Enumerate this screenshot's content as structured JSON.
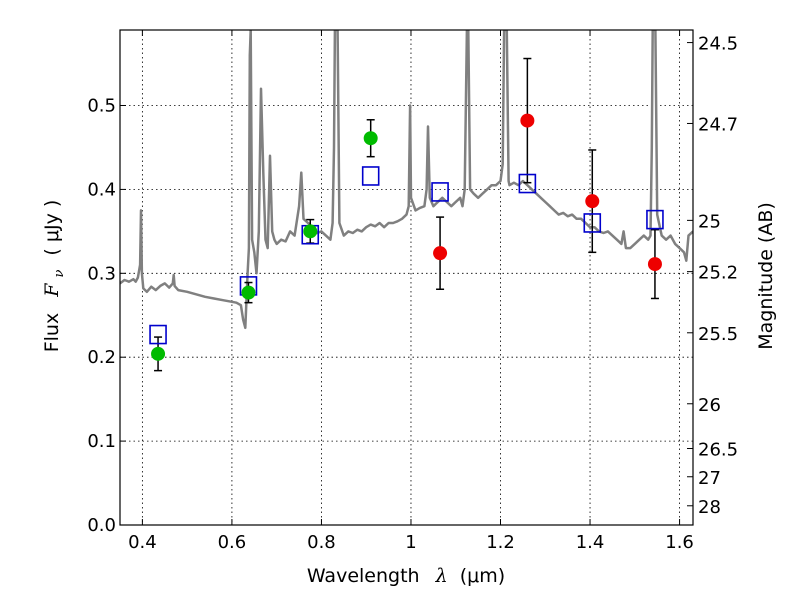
{
  "chart_data": {
    "type": "scatter",
    "xlabel": {
      "prefix": "Wavelength",
      "symbol": "λ",
      "unit": "(μm)"
    },
    "ylabel": {
      "prefix": "Flux",
      "symbol": "F",
      "subscript": "ν",
      "unit": "( μJy )"
    },
    "y2label": "Magnitude (AB)",
    "xlim": [
      0.35,
      1.63
    ],
    "ylim": [
      0.0,
      0.59
    ],
    "grid": true,
    "x_ticks": [
      0.4,
      0.6,
      0.8,
      1.0,
      1.2,
      1.4,
      1.6
    ],
    "x_tick_labels": [
      "0.4",
      "0.6",
      "0.8",
      "1",
      "1.2",
      "1.4",
      "1.6"
    ],
    "y_ticks": [
      0.0,
      0.1,
      0.2,
      0.3,
      0.4,
      0.5
    ],
    "y_tick_labels": [
      "0.0",
      "0.1",
      "0.2",
      "0.3",
      "0.4",
      "0.5"
    ],
    "magnitude_ticks": [
      {
        "label": "24.5",
        "flux": 0.575
      },
      {
        "label": "24.7",
        "flux": 0.4786
      },
      {
        "label": "25",
        "flux": 0.3631
      },
      {
        "label": "25.2",
        "flux": 0.302
      },
      {
        "label": "25.5",
        "flux": 0.2291
      },
      {
        "label": "26",
        "flux": 0.1445
      },
      {
        "label": "26.5",
        "flux": 0.0912
      },
      {
        "label": "27",
        "flux": 0.0575
      },
      {
        "label": "28",
        "flux": 0.0229
      }
    ],
    "colors": {
      "spectrum": "#808080",
      "green_points": "#00bb00",
      "red_points": "#ee0000",
      "model_boxes": "#0000cc",
      "error_bars": "#000000"
    },
    "spectrum": [
      [
        0.35,
        0.288
      ],
      [
        0.36,
        0.292
      ],
      [
        0.37,
        0.29
      ],
      [
        0.38,
        0.293
      ],
      [
        0.385,
        0.29
      ],
      [
        0.39,
        0.295
      ],
      [
        0.395,
        0.31
      ],
      [
        0.397,
        0.375
      ],
      [
        0.399,
        0.3
      ],
      [
        0.402,
        0.282
      ],
      [
        0.41,
        0.278
      ],
      [
        0.42,
        0.284
      ],
      [
        0.43,
        0.28
      ],
      [
        0.44,
        0.285
      ],
      [
        0.45,
        0.288
      ],
      [
        0.46,
        0.283
      ],
      [
        0.468,
        0.288
      ],
      [
        0.47,
        0.298
      ],
      [
        0.472,
        0.285
      ],
      [
        0.48,
        0.28
      ],
      [
        0.5,
        0.278
      ],
      [
        0.52,
        0.275
      ],
      [
        0.54,
        0.272
      ],
      [
        0.56,
        0.27
      ],
      [
        0.58,
        0.268
      ],
      [
        0.6,
        0.266
      ],
      [
        0.61,
        0.265
      ],
      [
        0.62,
        0.262
      ],
      [
        0.625,
        0.245
      ],
      [
        0.63,
        0.235
      ],
      [
        0.635,
        0.3
      ],
      [
        0.638,
        0.33
      ],
      [
        0.64,
        0.56
      ],
      [
        0.642,
        0.59
      ],
      [
        0.645,
        0.34
      ],
      [
        0.65,
        0.325
      ],
      [
        0.655,
        0.3
      ],
      [
        0.66,
        0.35
      ],
      [
        0.665,
        0.52
      ],
      [
        0.67,
        0.42
      ],
      [
        0.675,
        0.34
      ],
      [
        0.68,
        0.33
      ],
      [
        0.685,
        0.44
      ],
      [
        0.69,
        0.35
      ],
      [
        0.695,
        0.34
      ],
      [
        0.7,
        0.335
      ],
      [
        0.71,
        0.34
      ],
      [
        0.72,
        0.338
      ],
      [
        0.73,
        0.35
      ],
      [
        0.74,
        0.345
      ],
      [
        0.75,
        0.38
      ],
      [
        0.755,
        0.42
      ],
      [
        0.76,
        0.365
      ],
      [
        0.77,
        0.36
      ],
      [
        0.78,
        0.355
      ],
      [
        0.79,
        0.348
      ],
      [
        0.8,
        0.35
      ],
      [
        0.81,
        0.345
      ],
      [
        0.82,
        0.34
      ],
      [
        0.825,
        0.36
      ],
      [
        0.828,
        0.45
      ],
      [
        0.83,
        0.59
      ],
      [
        0.836,
        0.59
      ],
      [
        0.84,
        0.36
      ],
      [
        0.85,
        0.345
      ],
      [
        0.86,
        0.35
      ],
      [
        0.87,
        0.348
      ],
      [
        0.88,
        0.352
      ],
      [
        0.89,
        0.35
      ],
      [
        0.9,
        0.355
      ],
      [
        0.91,
        0.358
      ],
      [
        0.92,
        0.356
      ],
      [
        0.93,
        0.36
      ],
      [
        0.94,
        0.355
      ],
      [
        0.95,
        0.36
      ],
      [
        0.96,
        0.36
      ],
      [
        0.97,
        0.362
      ],
      [
        0.98,
        0.365
      ],
      [
        0.99,
        0.37
      ],
      [
        0.995,
        0.38
      ],
      [
        0.998,
        0.5
      ],
      [
        1.0,
        0.39
      ],
      [
        1.01,
        0.375
      ],
      [
        1.02,
        0.378
      ],
      [
        1.03,
        0.38
      ],
      [
        1.035,
        0.4
      ],
      [
        1.038,
        0.475
      ],
      [
        1.042,
        0.39
      ],
      [
        1.05,
        0.38
      ],
      [
        1.06,
        0.385
      ],
      [
        1.07,
        0.39
      ],
      [
        1.08,
        0.385
      ],
      [
        1.09,
        0.38
      ],
      [
        1.1,
        0.385
      ],
      [
        1.11,
        0.39
      ],
      [
        1.115,
        0.38
      ],
      [
        1.12,
        0.4
      ],
      [
        1.125,
        0.59
      ],
      [
        1.128,
        0.59
      ],
      [
        1.132,
        0.4
      ],
      [
        1.14,
        0.395
      ],
      [
        1.15,
        0.39
      ],
      [
        1.16,
        0.395
      ],
      [
        1.17,
        0.4
      ],
      [
        1.18,
        0.405
      ],
      [
        1.19,
        0.405
      ],
      [
        1.2,
        0.41
      ],
      [
        1.205,
        0.43
      ],
      [
        1.208,
        0.59
      ],
      [
        1.214,
        0.59
      ],
      [
        1.218,
        0.41
      ],
      [
        1.22,
        0.405
      ],
      [
        1.23,
        0.408
      ],
      [
        1.24,
        0.405
      ],
      [
        1.25,
        0.41
      ],
      [
        1.26,
        0.405
      ],
      [
        1.27,
        0.4
      ],
      [
        1.28,
        0.395
      ],
      [
        1.29,
        0.39
      ],
      [
        1.3,
        0.385
      ],
      [
        1.31,
        0.38
      ],
      [
        1.32,
        0.375
      ],
      [
        1.33,
        0.37
      ],
      [
        1.34,
        0.372
      ],
      [
        1.35,
        0.368
      ],
      [
        1.36,
        0.37
      ],
      [
        1.37,
        0.365
      ],
      [
        1.38,
        0.365
      ],
      [
        1.39,
        0.36
      ],
      [
        1.4,
        0.355
      ],
      [
        1.41,
        0.355
      ],
      [
        1.42,
        0.35
      ],
      [
        1.43,
        0.348
      ],
      [
        1.44,
        0.35
      ],
      [
        1.45,
        0.345
      ],
      [
        1.46,
        0.34
      ],
      [
        1.47,
        0.335
      ],
      [
        1.475,
        0.35
      ],
      [
        1.48,
        0.33
      ],
      [
        1.49,
        0.33
      ],
      [
        1.5,
        0.335
      ],
      [
        1.51,
        0.34
      ],
      [
        1.52,
        0.345
      ],
      [
        1.53,
        0.34
      ],
      [
        1.535,
        0.345
      ],
      [
        1.538,
        0.45
      ],
      [
        1.54,
        0.59
      ],
      [
        1.546,
        0.59
      ],
      [
        1.55,
        0.37
      ],
      [
        1.56,
        0.345
      ],
      [
        1.57,
        0.34
      ],
      [
        1.58,
        0.345
      ],
      [
        1.59,
        0.335
      ],
      [
        1.6,
        0.33
      ],
      [
        1.61,
        0.325
      ],
      [
        1.615,
        0.315
      ],
      [
        1.62,
        0.345
      ],
      [
        1.63,
        0.35
      ]
    ],
    "green_points": [
      {
        "x": 0.435,
        "y": 0.204,
        "err": 0.02
      },
      {
        "x": 0.637,
        "y": 0.277,
        "err": 0.012
      },
      {
        "x": 0.775,
        "y": 0.35,
        "err": 0.014
      },
      {
        "x": 0.91,
        "y": 0.461,
        "err": 0.022
      }
    ],
    "red_points": [
      {
        "x": 1.065,
        "y": 0.324,
        "err": 0.043
      },
      {
        "x": 1.26,
        "y": 0.482,
        "err": 0.074
      },
      {
        "x": 1.405,
        "y": 0.386,
        "err": 0.061
      },
      {
        "x": 1.545,
        "y": 0.311,
        "err": 0.041
      }
    ],
    "model_boxes": [
      {
        "x": 0.435,
        "y": 0.227
      },
      {
        "x": 0.637,
        "y": 0.285
      },
      {
        "x": 0.775,
        "y": 0.346
      },
      {
        "x": 0.91,
        "y": 0.416
      },
      {
        "x": 1.065,
        "y": 0.397
      },
      {
        "x": 1.26,
        "y": 0.407
      },
      {
        "x": 1.405,
        "y": 0.36
      },
      {
        "x": 1.545,
        "y": 0.364
      }
    ]
  }
}
